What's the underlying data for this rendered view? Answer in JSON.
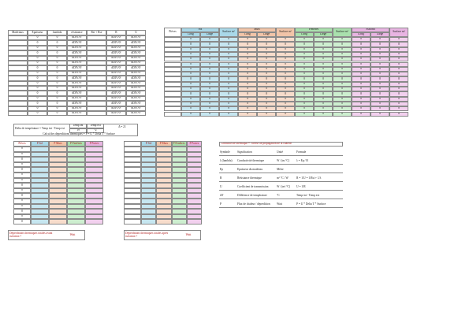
{
  "materials_table": {
    "headers": [
      "Matériaux",
      "Epaisseur",
      "Lambda",
      "résistance",
      "Rsi + Rse",
      "R",
      "U"
    ],
    "rows": [
      [
        0,
        0,
        "#DIV/0!",
        "#DIV/0!",
        "#DIV/0!"
      ],
      [
        0,
        0,
        "#DIV/0!",
        "#DIV/0!",
        "#DIV/0!"
      ],
      [
        0,
        0,
        "#DIV/0!",
        "#DIV/0!",
        "#DIV/0!"
      ],
      [
        0,
        0,
        "#DIV/0!",
        "#DIV/0!",
        "#DIV/0!"
      ],
      [
        0,
        0,
        "#DIV/0!",
        "#DIV/0!",
        "#DIV/0!"
      ],
      [
        0,
        0,
        "#DIV/0!",
        "#DIV/0!",
        "#DIV/0!"
      ],
      [
        0,
        0,
        "#DIV/0!",
        "#DIV/0!",
        "#DIV/0!"
      ],
      [
        0,
        0,
        "#DIV/0!",
        "#DIV/0!",
        "#DIV/0!"
      ],
      [
        0,
        0,
        "#DIV/0!",
        "#DIV/0!",
        "#DIV/0!"
      ],
      [
        0,
        0,
        "#DIV/0!",
        "#DIV/0!",
        "#DIV/0!"
      ],
      [
        0,
        0,
        "#DIV/0!",
        "#DIV/0!",
        "#DIV/0!"
      ],
      [
        0,
        0,
        "#DIV/0!",
        "#DIV/0!",
        "#DIV/0!"
      ],
      [
        0,
        0,
        "#DIV/0!",
        "#DIV/0!",
        "#DIV/0!"
      ],
      [
        0,
        0,
        "#DIV/0!",
        "#DIV/0!",
        "#DIV/0!"
      ],
      [
        0,
        0,
        "#DIV/0!",
        "#DIV/0!",
        "#DIV/0!"
      ],
      [
        0,
        0,
        "#DIV/0!",
        "#DIV/0!",
        "#DIV/0!"
      ]
    ]
  },
  "surfaces_table": {
    "room_header": "Pièces",
    "groups": [
      {
        "name": "Sol",
        "columns": [
          "Long",
          "Large"
        ],
        "surface": "Surface m²"
      },
      {
        "name": "Murs",
        "columns": [
          "Long",
          "Large"
        ],
        "surface": "Surface m²"
      },
      {
        "name": "Fenêtres",
        "columns": [
          "Long",
          "Large"
        ],
        "surface": "Surface m²"
      },
      {
        "name": "Plafond",
        "columns": [
          "Long",
          "Large"
        ],
        "surface": "Surface m²"
      }
    ],
    "rows": [
      [
        0,
        0,
        0,
        0,
        0,
        0,
        0,
        0,
        0,
        0,
        0,
        0
      ],
      [
        0,
        0,
        0,
        0,
        0,
        0,
        0,
        0,
        0,
        0,
        0,
        0
      ],
      [
        0,
        0,
        0,
        0,
        0,
        0,
        0,
        0,
        0,
        0,
        0,
        0
      ],
      [
        0,
        0,
        0,
        0,
        0,
        0,
        0,
        0,
        0,
        0,
        0,
        0
      ],
      [
        0,
        0,
        0,
        0,
        0,
        0,
        0,
        0,
        0,
        0,
        0,
        0
      ],
      [
        0,
        0,
        0,
        0,
        0,
        0,
        0,
        0,
        0,
        0,
        0,
        0
      ],
      [
        0,
        0,
        0,
        0,
        0,
        0,
        0,
        0,
        0,
        0,
        0,
        0
      ],
      [
        0,
        0,
        0,
        0,
        0,
        0,
        0,
        0,
        0,
        0,
        0,
        0
      ],
      [
        0,
        0,
        0,
        0,
        0,
        0,
        0,
        0,
        0,
        0,
        0,
        0
      ],
      [
        0,
        0,
        0,
        0,
        0,
        0,
        0,
        0,
        0,
        0,
        0,
        0
      ],
      [
        0,
        0,
        0,
        0,
        0,
        0,
        0,
        0,
        0,
        0,
        0,
        0
      ],
      [
        0,
        0,
        0,
        0,
        0,
        0,
        0,
        0,
        0,
        0,
        0,
        0
      ],
      [
        0,
        0,
        0,
        0,
        0,
        0,
        0,
        0,
        0,
        0,
        0,
        0
      ],
      [
        0,
        0,
        0,
        0,
        0,
        0,
        0,
        0,
        0,
        0,
        0,
        0
      ],
      [
        0,
        0,
        0,
        0,
        0,
        0,
        0,
        0,
        0,
        0,
        0,
        0
      ],
      [
        0,
        0,
        0,
        0,
        0,
        0,
        0,
        0,
        0,
        0,
        0,
        0
      ]
    ]
  },
  "temperature": {
    "label": "Delta de température = Temp int - Temp ext",
    "int_label": "Temp int",
    "ext_label": "Temp ext",
    "int_value": 19,
    "ext_value": -2,
    "delta": "Δ = 21",
    "formula": "Calcul des déperditions thermiques = P = U * Delta T * Surface"
  },
  "losses_before": {
    "headers": [
      "Pièces",
      "P Sol",
      "P Murs",
      "P Fenêtres",
      "P Portes"
    ],
    "rooms": [
      0,
      0,
      0,
      0,
      0,
      0,
      0,
      0,
      0,
      0,
      0,
      0,
      0,
      0,
      0
    ]
  },
  "losses_after": {
    "headers": [
      "P Sol",
      "P Murs",
      "P Fenêtres",
      "P Portes"
    ]
  },
  "definitions": {
    "title": "Conductivité thermique = Vitesse de propagation de la chaleur",
    "rows": [
      [
        "Symbole",
        "Signification",
        "Unité",
        "Formule"
      ],
      [
        "λ (lambda)",
        "Conductivité thermique",
        "W / (m.°C)",
        "λ = Ep / R"
      ],
      [
        "Ep",
        "Epaisseur du matériau",
        "Mètre"
      ],
      [
        "R",
        "Résistance thermique",
        "m² °C / W",
        "R = 1/U = 1/Rsi + 1/λ"
      ],
      [
        "U",
        "Coefficient de transmission",
        "W / (m².°C)",
        "U = 1/R"
      ],
      [
        "ΔT",
        "Différence de température",
        "°C",
        "Temp int - Temp ext"
      ],
      [
        "P",
        "Flux de chaleur / déperdition",
        "Watt",
        "P = U * Delta T * Surface"
      ]
    ]
  },
  "totals": [
    {
      "label": "Déperditions thermiques totales avant isolation =",
      "unit": "Watt"
    },
    {
      "label": "Déperditions thermiques totales après isolation =",
      "unit": "Watt"
    }
  ]
}
